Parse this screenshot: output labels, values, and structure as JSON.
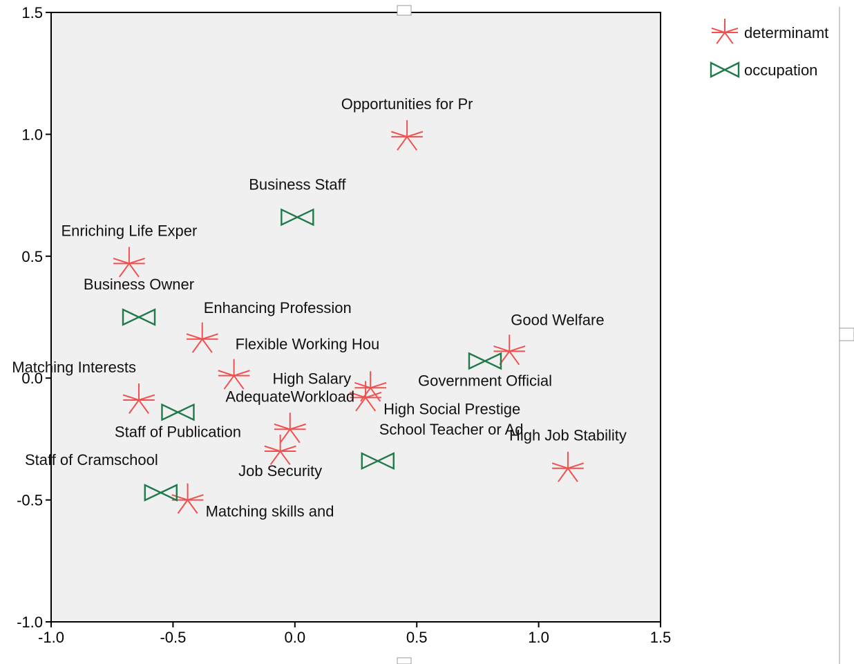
{
  "colors": {
    "determinant": "#f0504f",
    "occupation": "#1f7a4a",
    "plot_bg": "#f0f0f0",
    "frame": "#000000"
  },
  "legend": [
    {
      "label": "determinamt",
      "marker": "asterisk-icon",
      "series": "determinant"
    },
    {
      "label": "occupation",
      "marker": "bowtie-icon",
      "series": "occupation"
    }
  ],
  "chart_data": {
    "type": "scatter",
    "title": "",
    "xlabel": "",
    "ylabel": "",
    "xlim": [
      -1.0,
      1.5
    ],
    "ylim": [
      -1.0,
      1.5
    ],
    "x_ticks": [
      "-1.0",
      "-0.5",
      "0.0",
      "0.5",
      "1.0",
      "1.5"
    ],
    "y_ticks": [
      "1.5",
      "1.0",
      "0.5",
      "0.0",
      "-0.5",
      "-1.0"
    ],
    "grid": false,
    "legend_position": "top-right outside",
    "series": [
      {
        "name": "determinamt",
        "marker": "asterisk",
        "points": [
          {
            "label": "Opportunities for Pr",
            "x": 0.46,
            "y": 0.99,
            "label_pos": "above"
          },
          {
            "label": "Enriching Life Exper",
            "x": -0.68,
            "y": 0.47,
            "label_pos": "above"
          },
          {
            "label": "Enhancing Profession",
            "x": -0.38,
            "y": 0.16,
            "label_pos": "above-right"
          },
          {
            "label": "Flexible Working Hou",
            "x": -0.25,
            "y": 0.01,
            "label_pos": "above-right"
          },
          {
            "label": "Matching Interests",
            "x": -0.64,
            "y": -0.09,
            "label_pos": "above-left"
          },
          {
            "label": "High Salary",
            "x": 0.31,
            "y": -0.04,
            "label_pos": "left"
          },
          {
            "label": "High Social Prestige",
            "x": 0.29,
            "y": -0.08,
            "label_pos": "right"
          },
          {
            "label": "Good Welfare",
            "x": 0.88,
            "y": 0.11,
            "label_pos": "above-right"
          },
          {
            "label": "AdequateWorkload",
            "x": -0.02,
            "y": -0.21,
            "label_pos": "above"
          },
          {
            "label": "Job Security",
            "x": -0.06,
            "y": -0.3,
            "label_pos": "below"
          },
          {
            "label": "High Job Stability",
            "x": 1.12,
            "y": -0.37,
            "label_pos": "above"
          },
          {
            "label": "Matching skills and",
            "x": -0.44,
            "y": -0.5,
            "label_pos": "right"
          }
        ]
      },
      {
        "name": "occupation",
        "marker": "bowtie",
        "points": [
          {
            "label": "Business Staff",
            "x": 0.01,
            "y": 0.66,
            "label_pos": "above"
          },
          {
            "label": "Business Owner",
            "x": -0.64,
            "y": 0.25,
            "label_pos": "above"
          },
          {
            "label": "Government Official",
            "x": 0.78,
            "y": 0.07,
            "label_pos": "below"
          },
          {
            "label": "Staff of Publication",
            "x": -0.48,
            "y": -0.14,
            "label_pos": "below"
          },
          {
            "label": "School Teacher or Ad",
            "x": 0.34,
            "y": -0.34,
            "label_pos": "above-right"
          },
          {
            "label": "Staff of Cramschool",
            "x": -0.55,
            "y": -0.47,
            "label_pos": "above-left"
          }
        ]
      }
    ]
  }
}
